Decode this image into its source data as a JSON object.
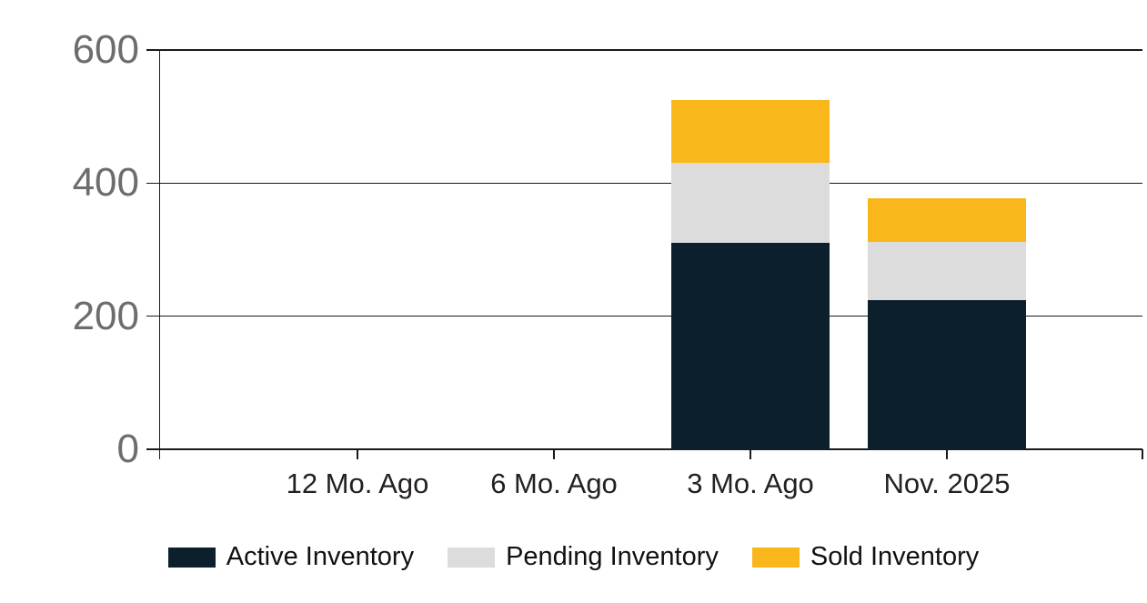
{
  "chart_data": {
    "type": "bar",
    "stacked": true,
    "title": "",
    "xlabel": "",
    "ylabel": "",
    "categories": [
      "12 Mo. Ago",
      "6 Mo. Ago",
      "3 Mo. Ago",
      "Nov. 2025"
    ],
    "series": [
      {
        "name": "Active Inventory",
        "color": "#0b1f2c",
        "values": [
          0,
          0,
          310,
          224
        ]
      },
      {
        "name": "Pending Inventory",
        "color": "#dcdcdc",
        "values": [
          0,
          0,
          120,
          87
        ]
      },
      {
        "name": "Sold Inventory",
        "color": "#fab71c",
        "values": [
          0,
          0,
          95,
          66
        ]
      }
    ],
    "ylim": [
      0,
      600
    ],
    "yticks": [
      600,
      400,
      200,
      0
    ],
    "ytick_labels": [
      "600",
      "400",
      "200",
      "0"
    ],
    "grid": true,
    "legend_position": "bottom",
    "colors": {
      "axis_line": "#1a1a1a",
      "ytick_label": "#6d6d6d",
      "xtick_label": "#242021",
      "background": "#ffffff"
    }
  }
}
